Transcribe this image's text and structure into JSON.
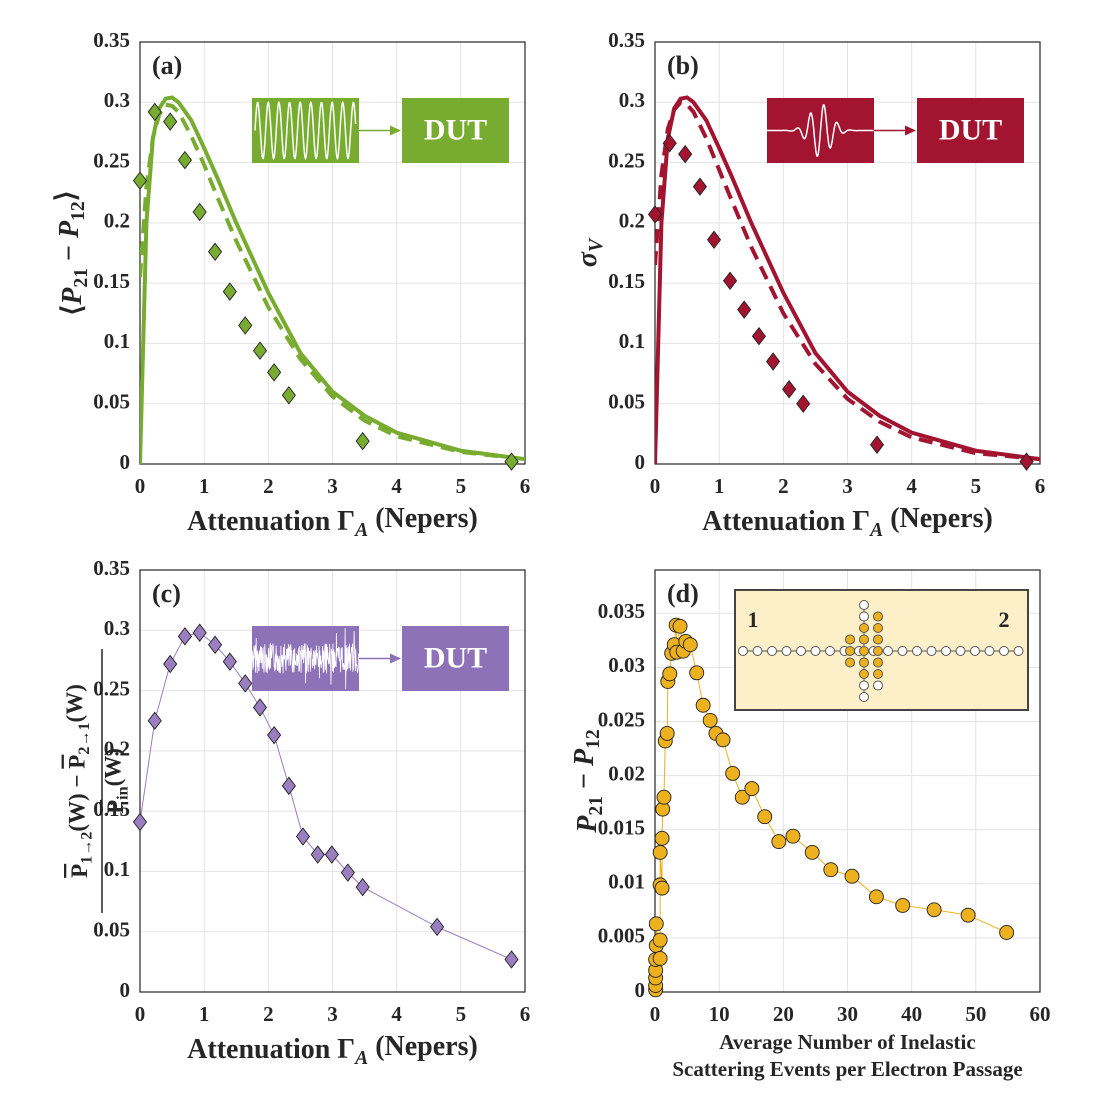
{
  "chart_data": [
    {
      "type": "line",
      "panel_label": "(a)",
      "inset_label": "DUT",
      "color": "#77ac30",
      "xlabel": [
        {
          "text": "Attenuation Γ"
        },
        {
          "text": "A",
          "sub": true,
          "italic": true
        },
        {
          "text": " (Nepers)"
        }
      ],
      "ylabel": [
        {
          "text": "⟨"
        },
        {
          "text": "P",
          "italic": true
        },
        {
          "text": "21",
          "sub": true
        },
        {
          "text": " − "
        },
        {
          "text": "P",
          "italic": true
        },
        {
          "text": "12",
          "sub": true
        },
        {
          "text": "⟩"
        }
      ],
      "xlim": [
        0,
        6
      ],
      "ylim": [
        0,
        0.35
      ],
      "xticks": [
        0,
        1,
        2,
        3,
        4,
        5,
        6
      ],
      "yticks": [
        0,
        0.05,
        0.1,
        0.15,
        0.2,
        0.25,
        0.3,
        0.35
      ],
      "grid": true,
      "series": [
        {
          "style": "solid",
          "color": "#77ac30",
          "x": [
            0,
            0.1,
            0.2,
            0.3,
            0.4,
            0.5,
            0.6,
            0.8,
            1.0,
            1.2,
            1.5,
            2,
            2.5,
            3,
            3.5,
            4,
            5,
            6
          ],
          "values": [
            0,
            0.2,
            0.27,
            0.295,
            0.303,
            0.304,
            0.3,
            0.285,
            0.262,
            0.238,
            0.2,
            0.142,
            0.092,
            0.06,
            0.04,
            0.026,
            0.011,
            0.004
          ]
        },
        {
          "style": "dashed",
          "color": "#77ac30",
          "x": [
            0,
            0.1,
            0.2,
            0.3,
            0.4,
            0.5,
            0.6,
            0.8,
            1.0,
            1.2,
            1.5,
            2,
            2.5,
            3,
            3.5,
            4,
            5,
            6
          ],
          "values": [
            0.155,
            0.23,
            0.27,
            0.29,
            0.298,
            0.297,
            0.292,
            0.272,
            0.248,
            0.222,
            0.185,
            0.13,
            0.087,
            0.056,
            0.036,
            0.023,
            0.01,
            0.004
          ]
        },
        {
          "style": "markers",
          "marker": "diamond",
          "color": "#77ac30",
          "x": [
            0,
            0.23,
            0.47,
            0.7,
            0.93,
            1.17,
            1.4,
            1.64,
            1.87,
            2.09,
            2.32,
            3.47,
            5.79
          ],
          "values": [
            0.235,
            0.292,
            0.284,
            0.252,
            0.209,
            0.176,
            0.143,
            0.115,
            0.094,
            0.076,
            0.057,
            0.019,
            0.002
          ]
        }
      ]
    },
    {
      "type": "line",
      "panel_label": "(b)",
      "inset_label": "DUT",
      "color": "#a2142f",
      "xlabel": [
        {
          "text": "Attenuation Γ"
        },
        {
          "text": "A",
          "sub": true,
          "italic": true
        },
        {
          "text": " (Nepers)"
        }
      ],
      "ylabel": [
        {
          "text": "σ",
          "italic": true
        },
        {
          "text": "V",
          "sub": true,
          "italic": true
        }
      ],
      "xlim": [
        0,
        6
      ],
      "ylim": [
        0,
        0.35
      ],
      "xticks": [
        0,
        1,
        2,
        3,
        4,
        5,
        6
      ],
      "yticks": [
        0,
        0.05,
        0.1,
        0.15,
        0.2,
        0.25,
        0.3,
        0.35
      ],
      "grid": true,
      "series": [
        {
          "style": "solid",
          "color": "#a2142f",
          "x": [
            0,
            0.1,
            0.2,
            0.3,
            0.4,
            0.5,
            0.6,
            0.8,
            1.0,
            1.2,
            1.5,
            2,
            2.5,
            3,
            3.5,
            4,
            5,
            6
          ],
          "values": [
            0,
            0.2,
            0.27,
            0.295,
            0.303,
            0.304,
            0.3,
            0.285,
            0.262,
            0.238,
            0.2,
            0.142,
            0.092,
            0.06,
            0.04,
            0.026,
            0.011,
            0.004
          ]
        },
        {
          "style": "dashed",
          "color": "#a2142f",
          "x": [
            0,
            0.1,
            0.2,
            0.3,
            0.4,
            0.5,
            0.6,
            0.8,
            1.0,
            1.2,
            1.5,
            2,
            2.5,
            3,
            3.5,
            4,
            5,
            6
          ],
          "values": [
            0.165,
            0.24,
            0.278,
            0.294,
            0.3,
            0.298,
            0.292,
            0.27,
            0.244,
            0.218,
            0.18,
            0.125,
            0.083,
            0.054,
            0.035,
            0.022,
            0.009,
            0.004
          ]
        },
        {
          "style": "markers",
          "marker": "diamond",
          "color": "#a2142f",
          "x": [
            0,
            0.23,
            0.47,
            0.7,
            0.92,
            1.17,
            1.39,
            1.62,
            1.84,
            2.09,
            2.31,
            3.46,
            5.79
          ],
          "values": [
            0.207,
            0.266,
            0.257,
            0.23,
            0.186,
            0.152,
            0.128,
            0.106,
            0.085,
            0.062,
            0.05,
            0.016,
            0.002
          ]
        }
      ]
    },
    {
      "type": "line",
      "panel_label": "(c)",
      "inset_label": "DUT",
      "color": "#8e72b8",
      "xlabel": [
        {
          "text": "Attenuation Γ"
        },
        {
          "text": "A",
          "sub": true,
          "italic": true
        },
        {
          "text": " (Nepers)"
        }
      ],
      "ylabel": {
        "numerator": [
          {
            "text": "P",
            "over": true
          },
          {
            "text": "1→2",
            "sub": true
          },
          {
            "text": "(W) − "
          },
          {
            "text": "P",
            "over": true
          },
          {
            "text": "2→1",
            "sub": true
          },
          {
            "text": "(W)"
          }
        ],
        "denominator": [
          {
            "text": "P",
            "over": true
          },
          {
            "text": "in",
            "sub": true
          },
          {
            "text": "(W)"
          }
        ]
      },
      "xlim": [
        0,
        6
      ],
      "ylim": [
        0,
        0.35
      ],
      "xticks": [
        0,
        1,
        2,
        3,
        4,
        5,
        6
      ],
      "yticks": [
        0,
        0.05,
        0.1,
        0.15,
        0.2,
        0.25,
        0.3,
        0.35
      ],
      "grid": true,
      "series": [
        {
          "style": "markers+line",
          "marker": "diamond",
          "color": "#9a7ec0",
          "x": [
            0,
            0.23,
            0.47,
            0.7,
            0.93,
            1.17,
            1.4,
            1.64,
            1.87,
            2.09,
            2.32,
            2.54,
            2.77,
            2.99,
            3.24,
            3.47,
            4.63,
            5.79
          ],
          "values": [
            0.141,
            0.225,
            0.272,
            0.295,
            0.298,
            0.288,
            0.274,
            0.256,
            0.236,
            0.213,
            0.171,
            0.129,
            0.114,
            0.114,
            0.099,
            0.087,
            0.054,
            0.027
          ]
        }
      ]
    },
    {
      "type": "line",
      "panel_label": "(d)",
      "inset_labels": [
        "1",
        "2"
      ],
      "color": "#edb120",
      "xlabel": [
        "Average Number of Inelastic",
        "Scattering Events per Electron Passage"
      ],
      "ylabel": [
        {
          "text": "P",
          "italic": true
        },
        {
          "text": "21",
          "sub": true
        },
        {
          "text": " − "
        },
        {
          "text": "P",
          "italic": true
        },
        {
          "text": "12",
          "sub": true
        }
      ],
      "xlim": [
        0,
        60
      ],
      "ylim": [
        0,
        0.039
      ],
      "xticks": [
        0,
        10,
        20,
        30,
        40,
        50,
        60
      ],
      "yticks": [
        0,
        0.005,
        0.01,
        0.015,
        0.02,
        0.025,
        0.03,
        0.035
      ],
      "grid": true,
      "series": [
        {
          "style": "markers+line",
          "marker": "circle",
          "color": "#edb120",
          "x": [
            0.1,
            0.1,
            0.1,
            0.1,
            0.1,
            0.2,
            0.2,
            0.8,
            0.8,
            0.8,
            0.8,
            1.1,
            1.1,
            1.2,
            1.4,
            1.6,
            1.9,
            2.0,
            2.3,
            2.6,
            3.0,
            3.3,
            3.4,
            3.9,
            4.4,
            4.8,
            5.5,
            6.5,
            7.5,
            8.6,
            9.5,
            10.6,
            12.1,
            13.6,
            15.1,
            17.1,
            19.3,
            21.5,
            24.5,
            27.4,
            30.7,
            34.5,
            38.6,
            43.5,
            48.8,
            54.8
          ],
          "values": [
            0.0002,
            0.0006,
            0.0013,
            0.002,
            0.003,
            0.0043,
            0.0063,
            0.0031,
            0.0048,
            0.0099,
            0.0129,
            0.0096,
            0.0142,
            0.0169,
            0.018,
            0.0232,
            0.0239,
            0.0287,
            0.0294,
            0.0313,
            0.0321,
            0.0339,
            0.0314,
            0.0338,
            0.0315,
            0.0324,
            0.0321,
            0.0295,
            0.0265,
            0.0251,
            0.0239,
            0.0233,
            0.0202,
            0.018,
            0.0188,
            0.0162,
            0.0139,
            0.0144,
            0.0129,
            0.0113,
            0.0107,
            0.0088,
            0.008,
            0.0076,
            0.0071,
            0.0055
          ]
        }
      ]
    }
  ]
}
